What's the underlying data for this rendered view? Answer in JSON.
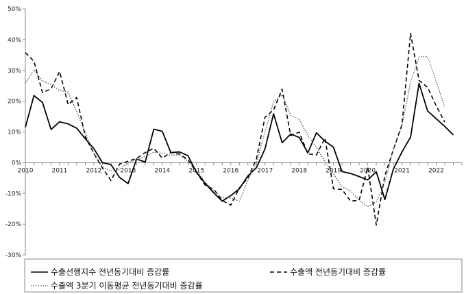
{
  "chart_data": {
    "type": "line",
    "ylim": [
      -30,
      50
    ],
    "y_ticks": [
      -30,
      -20,
      -10,
      0,
      10,
      20,
      30,
      40,
      50
    ],
    "y_tick_labels": [
      "-30%",
      "-20%",
      "-10%",
      "0%",
      "10%",
      "20%",
      "30%",
      "40%",
      "50%"
    ],
    "xlim": [
      2010,
      2022.75
    ],
    "x_ticks": [
      2010,
      2011,
      2012,
      2013,
      2014,
      2015,
      2016,
      2017,
      2018,
      2019,
      2020,
      2021,
      2022
    ],
    "x_tick_labels": [
      "2010",
      "2011",
      "2012",
      "2013",
      "2014",
      "2015",
      "2016",
      "2017",
      "2018",
      "2019",
      "2020",
      "2021",
      "2022"
    ],
    "grid": false,
    "legend_position": "bottom",
    "series": [
      {
        "name": "수출선행지수 전년동기대비 증감률",
        "style": "solid",
        "color": "#000000",
        "points": [
          [
            2010.0,
            11.5
          ],
          [
            2010.25,
            21.8
          ],
          [
            2010.5,
            19.6
          ],
          [
            2010.75,
            10.8
          ],
          [
            2011.0,
            13.3
          ],
          [
            2011.25,
            12.6
          ],
          [
            2011.5,
            11.2
          ],
          [
            2011.75,
            7.8
          ],
          [
            2012.0,
            4.6
          ],
          [
            2012.25,
            0.0
          ],
          [
            2012.5,
            -0.6
          ],
          [
            2012.75,
            -4.8
          ],
          [
            2013.0,
            -6.8
          ],
          [
            2013.25,
            1.2
          ],
          [
            2013.5,
            0.2
          ],
          [
            2013.75,
            10.9
          ],
          [
            2014.0,
            10.2
          ],
          [
            2014.25,
            3.3
          ],
          [
            2014.5,
            3.5
          ],
          [
            2014.75,
            2.3
          ],
          [
            2015.0,
            -3.2
          ],
          [
            2015.25,
            -6.7
          ],
          [
            2015.5,
            -9.8
          ],
          [
            2015.75,
            -12.5
          ],
          [
            2016.0,
            -10.7
          ],
          [
            2016.25,
            -8.5
          ],
          [
            2016.5,
            -4.3
          ],
          [
            2016.75,
            -1.6
          ],
          [
            2017.0,
            4.5
          ],
          [
            2017.25,
            15.9
          ],
          [
            2017.5,
            6.5
          ],
          [
            2017.75,
            9.3
          ],
          [
            2018.0,
            8.2
          ],
          [
            2018.25,
            3.2
          ],
          [
            2018.5,
            9.7
          ],
          [
            2018.75,
            7.0
          ],
          [
            2019.0,
            5.0
          ],
          [
            2019.25,
            -2.9
          ],
          [
            2019.5,
            -3.5
          ],
          [
            2019.75,
            -4.5
          ],
          [
            2020.0,
            -5.6
          ],
          [
            2020.25,
            -3.0
          ],
          [
            2020.5,
            -12.0
          ],
          [
            2020.75,
            -2.0
          ],
          [
            2021.0,
            3.5
          ],
          [
            2021.25,
            8.3
          ],
          [
            2021.5,
            25.8
          ],
          [
            2021.75,
            16.8
          ],
          [
            2022.0,
            14.3
          ],
          [
            2022.25,
            11.8
          ],
          [
            2022.5,
            9.0
          ]
        ]
      },
      {
        "name": "수출액 전년동기대비 증감률",
        "style": "dashed",
        "color": "#000000",
        "points": [
          [
            2010.0,
            35.8
          ],
          [
            2010.25,
            33.0
          ],
          [
            2010.5,
            22.8
          ],
          [
            2010.75,
            24.0
          ],
          [
            2011.0,
            29.6
          ],
          [
            2011.25,
            18.9
          ],
          [
            2011.5,
            21.2
          ],
          [
            2011.75,
            8.5
          ],
          [
            2012.0,
            3.0
          ],
          [
            2012.25,
            -1.7
          ],
          [
            2012.5,
            -5.8
          ],
          [
            2012.75,
            -0.5
          ],
          [
            2013.0,
            0.5
          ],
          [
            2013.25,
            1.4
          ],
          [
            2013.5,
            3.3
          ],
          [
            2013.75,
            4.7
          ],
          [
            2014.0,
            1.5
          ],
          [
            2014.25,
            3.3
          ],
          [
            2014.5,
            2.8
          ],
          [
            2014.75,
            1.0
          ],
          [
            2015.0,
            -3.2
          ],
          [
            2015.25,
            -7.3
          ],
          [
            2015.5,
            -8.6
          ],
          [
            2015.75,
            -12.3
          ],
          [
            2016.0,
            -13.8
          ],
          [
            2016.25,
            -8.2
          ],
          [
            2016.5,
            -5.0
          ],
          [
            2016.75,
            1.3
          ],
          [
            2017.0,
            14.8
          ],
          [
            2017.25,
            17.1
          ],
          [
            2017.5,
            23.9
          ],
          [
            2017.75,
            8.8
          ],
          [
            2018.0,
            9.9
          ],
          [
            2018.25,
            2.9
          ],
          [
            2018.5,
            2.5
          ],
          [
            2018.75,
            8.0
          ],
          [
            2019.0,
            -8.5
          ],
          [
            2019.25,
            -8.7
          ],
          [
            2019.5,
            -12.5
          ],
          [
            2019.75,
            -12.2
          ],
          [
            2020.0,
            -1.5
          ],
          [
            2020.25,
            -20.3
          ],
          [
            2020.5,
            -4.2
          ],
          [
            2020.75,
            4.3
          ],
          [
            2021.0,
            12.4
          ],
          [
            2021.25,
            42.1
          ],
          [
            2021.5,
            26.7
          ],
          [
            2021.75,
            24.5
          ],
          [
            2022.0,
            18.5
          ],
          [
            2022.25,
            13.2
          ]
        ]
      },
      {
        "name": "수출액 3분기 이동평균 전년동기대비 증감률",
        "style": "dotted",
        "color": "#555555",
        "points": [
          [
            2010.0,
            25.8
          ],
          [
            2010.25,
            30.2
          ],
          [
            2010.5,
            26.5
          ],
          [
            2010.75,
            25.4
          ],
          [
            2011.0,
            23.5
          ],
          [
            2011.25,
            23.0
          ],
          [
            2011.5,
            16.5
          ],
          [
            2011.75,
            10.0
          ],
          [
            2012.0,
            3.0
          ],
          [
            2012.25,
            -1.5
          ],
          [
            2012.5,
            -2.7
          ],
          [
            2012.75,
            -2.2
          ],
          [
            2013.0,
            0.0
          ],
          [
            2013.25,
            1.0
          ],
          [
            2013.5,
            2.0
          ],
          [
            2013.75,
            3.4
          ],
          [
            2014.0,
            3.1
          ],
          [
            2014.25,
            2.4
          ],
          [
            2014.5,
            2.6
          ],
          [
            2014.75,
            0.5
          ],
          [
            2015.0,
            -2.5
          ],
          [
            2015.25,
            -6.3
          ],
          [
            2015.5,
            -9.3
          ],
          [
            2015.75,
            -11.4
          ],
          [
            2016.0,
            -11.5
          ],
          [
            2016.25,
            -12.5
          ],
          [
            2016.5,
            -5.7
          ],
          [
            2016.75,
            0.0
          ],
          [
            2017.0,
            10.0
          ],
          [
            2017.25,
            19.8
          ],
          [
            2017.5,
            22.1
          ],
          [
            2017.75,
            15.4
          ],
          [
            2018.0,
            14.0
          ],
          [
            2018.25,
            8.9
          ],
          [
            2018.5,
            5.0
          ],
          [
            2018.75,
            0.4
          ],
          [
            2019.0,
            -3.6
          ],
          [
            2019.25,
            -7.8
          ],
          [
            2019.5,
            -9.3
          ],
          [
            2019.75,
            -12.2
          ],
          [
            2020.0,
            -14.3
          ],
          [
            2020.25,
            -12.7
          ],
          [
            2020.5,
            -6.3
          ],
          [
            2020.75,
            4.3
          ],
          [
            2021.0,
            12.0
          ],
          [
            2021.25,
            26.2
          ],
          [
            2021.5,
            34.4
          ],
          [
            2021.75,
            34.5
          ],
          [
            2022.0,
            26.5
          ],
          [
            2022.25,
            18.0
          ]
        ]
      }
    ]
  }
}
